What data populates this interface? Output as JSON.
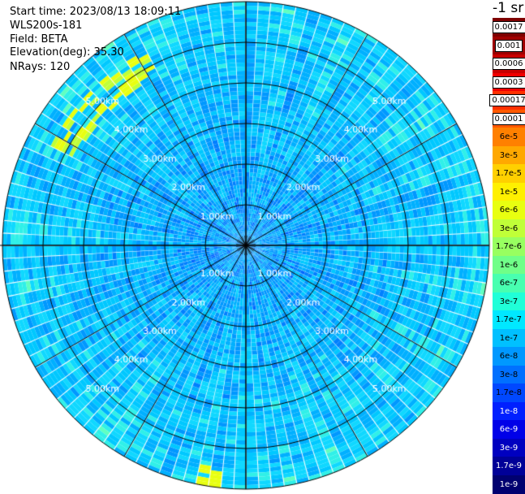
{
  "header": {
    "start_time": "Start time: 2023/08/13 18:09:11",
    "instrument": "WLS200s-181",
    "field": "Field: BETA",
    "elevation": "Elevation(deg): 35.30",
    "nrays": "NRays: 120"
  },
  "colorbar": {
    "unit_label": "-1 sr",
    "levels": [
      {
        "label": "0.0017",
        "color": "#7f0000",
        "chip": true
      },
      {
        "label": "0.001",
        "color": "#a00000",
        "chip": true
      },
      {
        "label": "0.0006",
        "color": "#c80000",
        "chip": true
      },
      {
        "label": "0.0003",
        "color": "#f00000",
        "chip": true
      },
      {
        "label": "0.00017",
        "color": "#ff3000",
        "chip": true
      },
      {
        "label": "0.0001",
        "color": "#ff5a00",
        "chip": true
      },
      {
        "label": "6e-5",
        "color": "#ff8000",
        "chip": false
      },
      {
        "label": "3e-5",
        "color": "#ffa800",
        "chip": false
      },
      {
        "label": "1.7e-5",
        "color": "#ffd000",
        "chip": false
      },
      {
        "label": "1e-5",
        "color": "#fff000",
        "chip": false
      },
      {
        "label": "6e-6",
        "color": "#e8ff10",
        "chip": false
      },
      {
        "label": "3e-6",
        "color": "#c0ff38",
        "chip": false
      },
      {
        "label": "1.7e-6",
        "color": "#98ff60",
        "chip": false
      },
      {
        "label": "1e-6",
        "color": "#70ff88",
        "chip": false
      },
      {
        "label": "6e-7",
        "color": "#48ffb0",
        "chip": false
      },
      {
        "label": "3e-7",
        "color": "#20ffd8",
        "chip": false
      },
      {
        "label": "1.7e-7",
        "color": "#00e8ff",
        "chip": false
      },
      {
        "label": "1e-7",
        "color": "#00c0ff",
        "chip": false
      },
      {
        "label": "6e-8",
        "color": "#0098ff",
        "chip": false
      },
      {
        "label": "3e-8",
        "color": "#0070ff",
        "chip": false
      },
      {
        "label": "1.7e-8",
        "color": "#0048ff",
        "chip": false
      },
      {
        "label": "1e-8",
        "color": "#0020ff",
        "chip": false
      },
      {
        "label": "6e-9",
        "color": "#0000e8",
        "chip": false
      },
      {
        "label": "3e-9",
        "color": "#0000c0",
        "chip": false
      },
      {
        "label": "1.7e-9",
        "color": "#000098",
        "chip": false
      },
      {
        "label": "1e-9",
        "color": "#000070",
        "chip": false
      }
    ]
  },
  "ppi": {
    "max_range_km": 6.0,
    "n_rays": 120,
    "range_rings_km": [
      1,
      2,
      3,
      4,
      5,
      6
    ],
    "ring_labels": [
      "1.00km",
      "2.00km",
      "3.00km",
      "4.00km",
      "5.00km"
    ],
    "palette": [
      "#0050ff",
      "#0068ff",
      "#0080ff",
      "#0098ff",
      "#00b0ff",
      "#00c8ff",
      "#10d8ff",
      "#30f0e8",
      "#60ffc0"
    ],
    "highlight_colors": [
      "#c0ff38",
      "#e8ff10"
    ]
  }
}
